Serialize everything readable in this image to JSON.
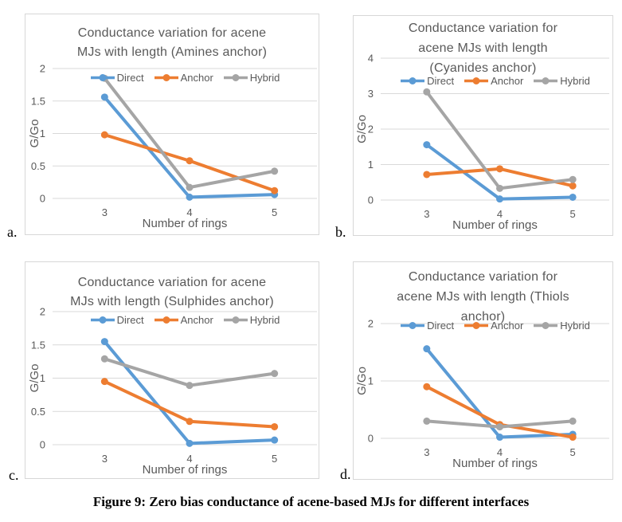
{
  "figure": {
    "caption": "Figure 9: Zero bias conductance of acene-based MJs for different interfaces"
  },
  "colors": {
    "direct": "#5B9BD5",
    "anchor": "#ED7D31",
    "hybrid": "#A5A5A5",
    "text": "#595959",
    "gridline": "#D9D9D9"
  },
  "chart_data": [
    {
      "type": "line",
      "panel_label": "a.",
      "title": "Conductance variation for acene MJs with length (Amines anchor)",
      "title_lines": [
        "Conductance variation for acene",
        "MJs with length (Amines anchor)"
      ],
      "xlabel": "Number of rings",
      "ylabel": "G/Go",
      "categories": [
        "3",
        "4",
        "5"
      ],
      "ylim": [
        0,
        2
      ],
      "yticks": [
        0,
        0.5,
        1,
        1.5,
        2
      ],
      "grid": true,
      "legend_position": "top-inside",
      "series": [
        {
          "name": "Direct",
          "color": "#5B9BD5",
          "values": [
            1.56,
            0.02,
            0.06
          ]
        },
        {
          "name": "Anchor",
          "color": "#ED7D31",
          "values": [
            0.98,
            0.58,
            0.12
          ]
        },
        {
          "name": "Hybrid",
          "color": "#A5A5A5",
          "values": [
            1.85,
            0.17,
            0.42
          ]
        }
      ]
    },
    {
      "type": "line",
      "panel_label": "b.",
      "title": "Conductance variation for acene MJs with length (Cyanides anchor)",
      "title_lines": [
        "Conductance variation for",
        "acene MJs with length",
        "(Cyanides anchor)"
      ],
      "xlabel": "Number of rings",
      "ylabel": "G/Go",
      "categories": [
        "3",
        "4",
        "5"
      ],
      "ylim": [
        0,
        4
      ],
      "yticks": [
        0,
        1,
        2,
        3,
        4
      ],
      "grid": true,
      "legend_position": "top-inside",
      "series": [
        {
          "name": "Direct",
          "color": "#5B9BD5",
          "values": [
            1.56,
            0.03,
            0.08
          ]
        },
        {
          "name": "Anchor",
          "color": "#ED7D31",
          "values": [
            0.72,
            0.88,
            0.4
          ]
        },
        {
          "name": "Hybrid",
          "color": "#A5A5A5",
          "values": [
            3.05,
            0.33,
            0.58
          ]
        }
      ]
    },
    {
      "type": "line",
      "panel_label": "c.",
      "title": "Conductance variation for acene MJs with length (Sulphides anchor)",
      "title_lines": [
        "Conductance variation for acene",
        "MJs with length (Sulphides anchor)"
      ],
      "xlabel": "Number of rings",
      "ylabel": "G/Go",
      "categories": [
        "3",
        "4",
        "5"
      ],
      "ylim": [
        0,
        2
      ],
      "yticks": [
        0,
        0.5,
        1,
        1.5,
        2
      ],
      "grid": true,
      "legend_position": "top-inside",
      "series": [
        {
          "name": "Direct",
          "color": "#5B9BD5",
          "values": [
            1.55,
            0.02,
            0.07
          ]
        },
        {
          "name": "Anchor",
          "color": "#ED7D31",
          "values": [
            0.95,
            0.35,
            0.27
          ]
        },
        {
          "name": "Hybrid",
          "color": "#A5A5A5",
          "values": [
            1.29,
            0.89,
            1.07
          ]
        }
      ]
    },
    {
      "type": "line",
      "panel_label": "d.",
      "title": "Conductance variation for acene MJs with length (Thiols anchor)",
      "title_lines": [
        "Conductance variation for",
        "acene MJs with length (Thiols",
        "anchor)"
      ],
      "xlabel": "Number of rings",
      "ylabel": "G/Go",
      "categories": [
        "3",
        "4",
        "5"
      ],
      "ylim": [
        0,
        2
      ],
      "yticks": [
        0,
        1,
        2
      ],
      "grid": true,
      "legend_position": "top-inside",
      "series": [
        {
          "name": "Direct",
          "color": "#5B9BD5",
          "values": [
            1.56,
            0.02,
            0.07
          ]
        },
        {
          "name": "Anchor",
          "color": "#ED7D31",
          "values": [
            0.9,
            0.24,
            0.02
          ]
        },
        {
          "name": "Hybrid",
          "color": "#A5A5A5",
          "values": [
            0.3,
            0.2,
            0.3
          ]
        }
      ]
    }
  ]
}
